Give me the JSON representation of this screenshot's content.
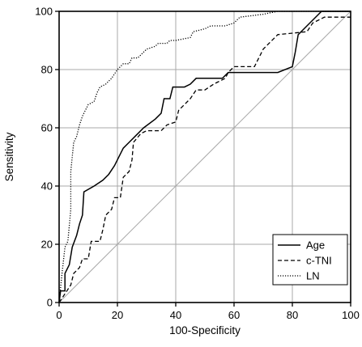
{
  "chart_data": {
    "type": "line",
    "title": "",
    "xlabel": "100-Specificity",
    "ylabel": "Sensitivity",
    "xlim": [
      0,
      100
    ],
    "ylim": [
      0,
      100
    ],
    "xticks": [
      "0",
      "20",
      "40",
      "60",
      "80",
      "100"
    ],
    "yticks": [
      "0",
      "20",
      "40",
      "60",
      "80",
      "100"
    ],
    "grid": true,
    "legend_position": "bottom-right",
    "reference_line": [
      [
        0,
        0
      ],
      [
        100,
        100
      ]
    ],
    "series": [
      {
        "name": "Age",
        "style": "solid",
        "color": "#000000",
        "points": [
          [
            0,
            0
          ],
          [
            0.5,
            4
          ],
          [
            2,
            4
          ],
          [
            2,
            10
          ],
          [
            3.5,
            13
          ],
          [
            4.5,
            19
          ],
          [
            6,
            23
          ],
          [
            7,
            27
          ],
          [
            8,
            30
          ],
          [
            8.5,
            38
          ],
          [
            12,
            40
          ],
          [
            15,
            42
          ],
          [
            17,
            44
          ],
          [
            19,
            47
          ],
          [
            20,
            49
          ],
          [
            22,
            53
          ],
          [
            24,
            55
          ],
          [
            26,
            57
          ],
          [
            29,
            60
          ],
          [
            33,
            63
          ],
          [
            35,
            65
          ],
          [
            36,
            70
          ],
          [
            38,
            70
          ],
          [
            39,
            74
          ],
          [
            42,
            74
          ],
          [
            43,
            74
          ],
          [
            45,
            75
          ],
          [
            47,
            77
          ],
          [
            56,
            77
          ],
          [
            58,
            79
          ],
          [
            75,
            79
          ],
          [
            80,
            81
          ],
          [
            81,
            86
          ],
          [
            82,
            92
          ],
          [
            84,
            94
          ],
          [
            89,
            99
          ],
          [
            90,
            100
          ],
          [
            100,
            100
          ]
        ]
      },
      {
        "name": "c-TNI",
        "style": "dashed",
        "color": "#000000",
        "points": [
          [
            0,
            0
          ],
          [
            4,
            6
          ],
          [
            5,
            10
          ],
          [
            7,
            12
          ],
          [
            8,
            15
          ],
          [
            10,
            15
          ],
          [
            11,
            21
          ],
          [
            14,
            21
          ],
          [
            15,
            25
          ],
          [
            16,
            30
          ],
          [
            18,
            32
          ],
          [
            19,
            36
          ],
          [
            21,
            36
          ],
          [
            22,
            43
          ],
          [
            24,
            45
          ],
          [
            25,
            49
          ],
          [
            25.5,
            55
          ],
          [
            28,
            58
          ],
          [
            30,
            59
          ],
          [
            35,
            59
          ],
          [
            37,
            61
          ],
          [
            40,
            62
          ],
          [
            41,
            66
          ],
          [
            43,
            68
          ],
          [
            45,
            70
          ],
          [
            47,
            73
          ],
          [
            50,
            73
          ],
          [
            53,
            75
          ],
          [
            57,
            77
          ],
          [
            58,
            79
          ],
          [
            60,
            81
          ],
          [
            67,
            81
          ],
          [
            68,
            83
          ],
          [
            70,
            87
          ],
          [
            72,
            89
          ],
          [
            75,
            92
          ],
          [
            85,
            93
          ],
          [
            87,
            96
          ],
          [
            91,
            98
          ],
          [
            100,
            98
          ]
        ]
      },
      {
        "name": "LN",
        "style": "dotted",
        "color": "#000000",
        "points": [
          [
            0,
            0
          ],
          [
            1,
            10
          ],
          [
            2,
            19
          ],
          [
            3,
            21
          ],
          [
            4,
            32
          ],
          [
            4,
            45
          ],
          [
            5,
            55
          ],
          [
            6,
            57
          ],
          [
            7,
            61
          ],
          [
            8,
            64
          ],
          [
            9,
            66
          ],
          [
            10,
            68
          ],
          [
            12,
            69
          ],
          [
            13,
            72
          ],
          [
            14,
            74
          ],
          [
            16,
            75
          ],
          [
            18,
            77
          ],
          [
            20,
            80
          ],
          [
            22,
            82
          ],
          [
            24,
            82
          ],
          [
            25,
            84
          ],
          [
            27,
            84
          ],
          [
            28,
            85
          ],
          [
            30,
            87
          ],
          [
            33,
            88
          ],
          [
            34,
            89
          ],
          [
            37,
            89
          ],
          [
            38,
            90
          ],
          [
            40,
            90
          ],
          [
            45,
            91
          ],
          [
            46,
            93
          ],
          [
            50,
            94
          ],
          [
            52,
            95
          ],
          [
            57,
            95
          ],
          [
            60,
            96
          ],
          [
            62,
            98
          ],
          [
            70,
            99
          ],
          [
            75,
            100
          ],
          [
            100,
            100
          ]
        ]
      }
    ]
  }
}
